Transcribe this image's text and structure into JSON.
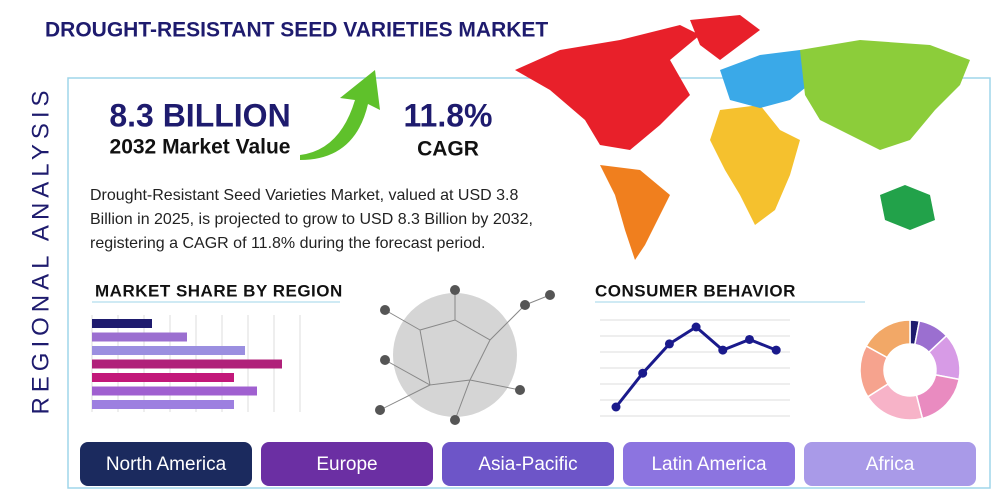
{
  "header": {
    "title": "DROUGHT-RESISTANT SEED VARIETIES MARKET",
    "side_label": "REGIONAL ANALYSIS"
  },
  "stats": [
    {
      "value": "8.3 BILLION",
      "label": "2032 Market Value"
    },
    {
      "value": "11.8%",
      "label": "CAGR"
    }
  ],
  "description": [
    "Drought-Resistant Seed Varieties Market, valued at USD 3.8",
    "Billion in 2025, is projected to grow to USD 8.3 Billion by 2032,",
    "registering a CAGR of 11.8% during the forecast period."
  ],
  "market_share": {
    "title": "MARKET SHARE BY REGION",
    "xlim": [
      0,
      200
    ],
    "values": [
      60,
      95,
      153,
      190,
      142,
      165,
      142
    ],
    "colors": [
      "#1e1b6e",
      "#9b6fd0",
      "#9b8fe0",
      "#b0207a",
      "#c2187a",
      "#a060d0",
      "#9d7fe0"
    ]
  },
  "consumer_behavior": {
    "title": "CONSUMER BEHAVIOR",
    "ylim": [
      0,
      90
    ],
    "values": [
      0,
      38,
      71,
      90,
      64,
      76,
      64
    ],
    "color": "#1a1a8c"
  },
  "donut": {
    "values": [
      3,
      10,
      15,
      18,
      20,
      17,
      17
    ],
    "colors": [
      "#1e1b6e",
      "#9b6fd0",
      "#d79be6",
      "#e98bc0",
      "#f7b3c8",
      "#f6a38e",
      "#f2a867"
    ]
  },
  "regions": [
    "North America",
    "Europe",
    "Asia-Pacific",
    "Latin America",
    "Africa"
  ]
}
